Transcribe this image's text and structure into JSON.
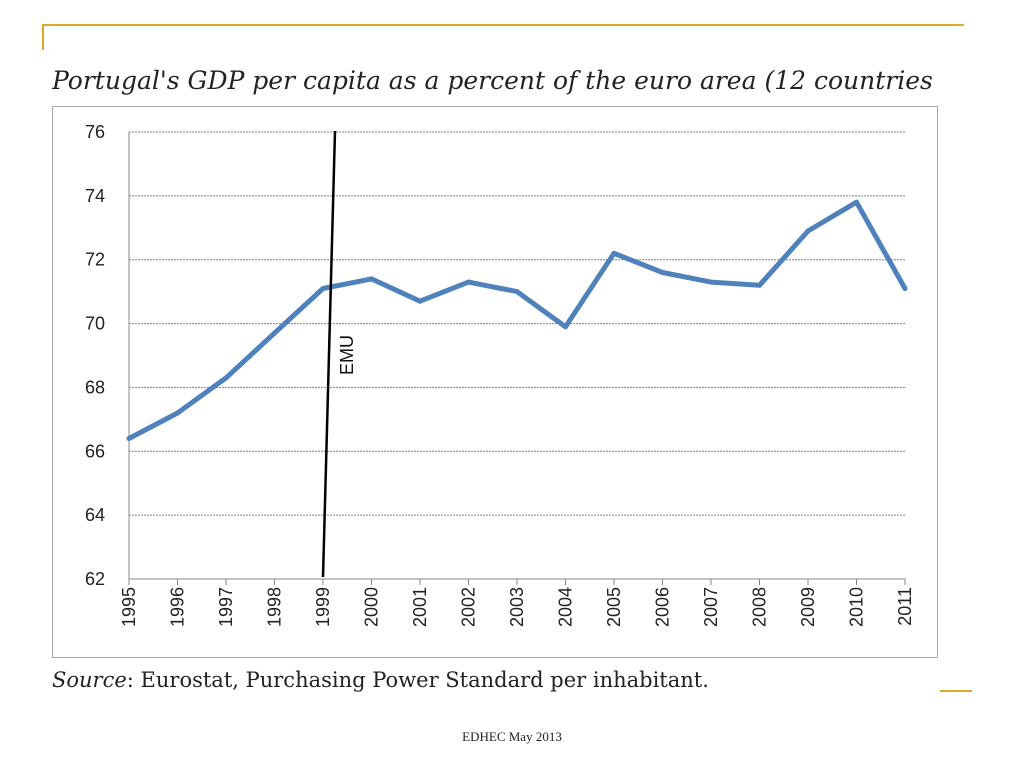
{
  "slide": {
    "title": "Portugal's GDP per capita as a percent of the euro area (12 countries",
    "source_prefix": "Source",
    "source_text": ": Eurostat, Purchasing Power Standard per inhabitant.",
    "footer": "EDHEC May 2013"
  },
  "colors": {
    "accent": "#e0a52a",
    "line": "#4f81bd",
    "grid": "#808080",
    "marker": "#000000"
  },
  "chart_data": {
    "type": "line",
    "title": "Portugal's GDP per capita as a percent of the euro area (12 countries",
    "x": [
      "1995",
      "1996",
      "1997",
      "1998",
      "1999",
      "2000",
      "2001",
      "2002",
      "2003",
      "2004",
      "2005",
      "2006",
      "2007",
      "2008",
      "2009",
      "2010",
      "2011"
    ],
    "series": [
      {
        "values": [
          66.4,
          67.2,
          68.3,
          69.7,
          71.1,
          71.4,
          70.7,
          71.3,
          71.0,
          69.9,
          72.2,
          71.6,
          71.3,
          71.2,
          72.9,
          73.8,
          71.1
        ]
      }
    ],
    "ylim": [
      62,
      76
    ],
    "yticks": [
      62,
      64,
      66,
      68,
      70,
      72,
      74,
      76
    ],
    "grid": true,
    "annotation": {
      "text": "EMU",
      "x": "1999"
    }
  }
}
